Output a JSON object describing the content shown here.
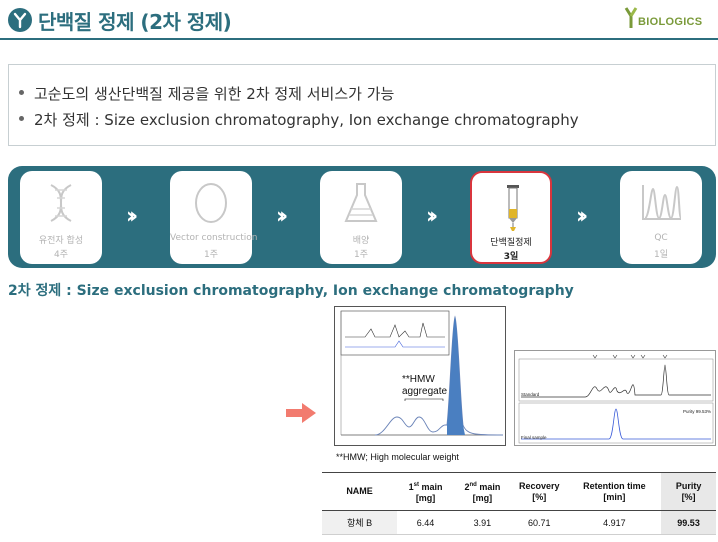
{
  "header": {
    "title": "단백질 정제 (2차 정제)",
    "brand": "BIOLOGICS"
  },
  "info": {
    "bullets": [
      "고순도의 생산단백질 제공을 위한 2차 정제 서비스가 가능",
      "2차 정제 : Size exclusion chromatography, Ion exchange chromatography"
    ]
  },
  "steps": [
    {
      "name": "유전자 합성",
      "time": "4주",
      "icon": "dna-icon",
      "active": false
    },
    {
      "name": "Vector construction",
      "time": "1주",
      "icon": "plasmid-icon",
      "active": false
    },
    {
      "name": "배양",
      "time": "1주",
      "icon": "flask-icon",
      "active": false
    },
    {
      "name": "단백질정제",
      "time": "3일",
      "icon": "column-icon",
      "active": true
    },
    {
      "name": "QC",
      "time": "1일",
      "icon": "chromatogram-icon",
      "active": false
    }
  ],
  "section_heading": "2차 정제 : Size exclusion chromatography, Ion exchange chromatography",
  "figure": {
    "hmw_label_line1": "**HMW",
    "hmw_label_line2": "aggregate",
    "hmw_note": "**HMW; High molecular weight",
    "panel2_standard": "Standard",
    "panel2_final": "Final sample",
    "panel2_purity": "Purity 99.53%"
  },
  "table": {
    "headers": {
      "name": "NAME",
      "first_main_1": "1",
      "first_main_sup": "st",
      "first_main_2": " main",
      "first_main_unit": "[mg]",
      "second_main_1": "2",
      "second_main_sup": "nd",
      "second_main_2": " main",
      "second_main_unit": "[mg]",
      "recovery": "Recovery",
      "recovery_unit": "[%]",
      "retention": "Retention time",
      "retention_unit": "[min]",
      "purity": "Purity",
      "purity_unit": "[%]"
    },
    "row": {
      "name": "항체 B",
      "first_main": "6.44",
      "second_main": "3.91",
      "recovery": "60.71",
      "retention": "4.917",
      "purity": "99.53"
    }
  },
  "colors": {
    "primary": "#2c6e7e",
    "active_border": "#d9353d",
    "arrow": "#f27b6f",
    "brand_green": "#7a9a3a",
    "peak_fill": "#4a7fc1"
  }
}
